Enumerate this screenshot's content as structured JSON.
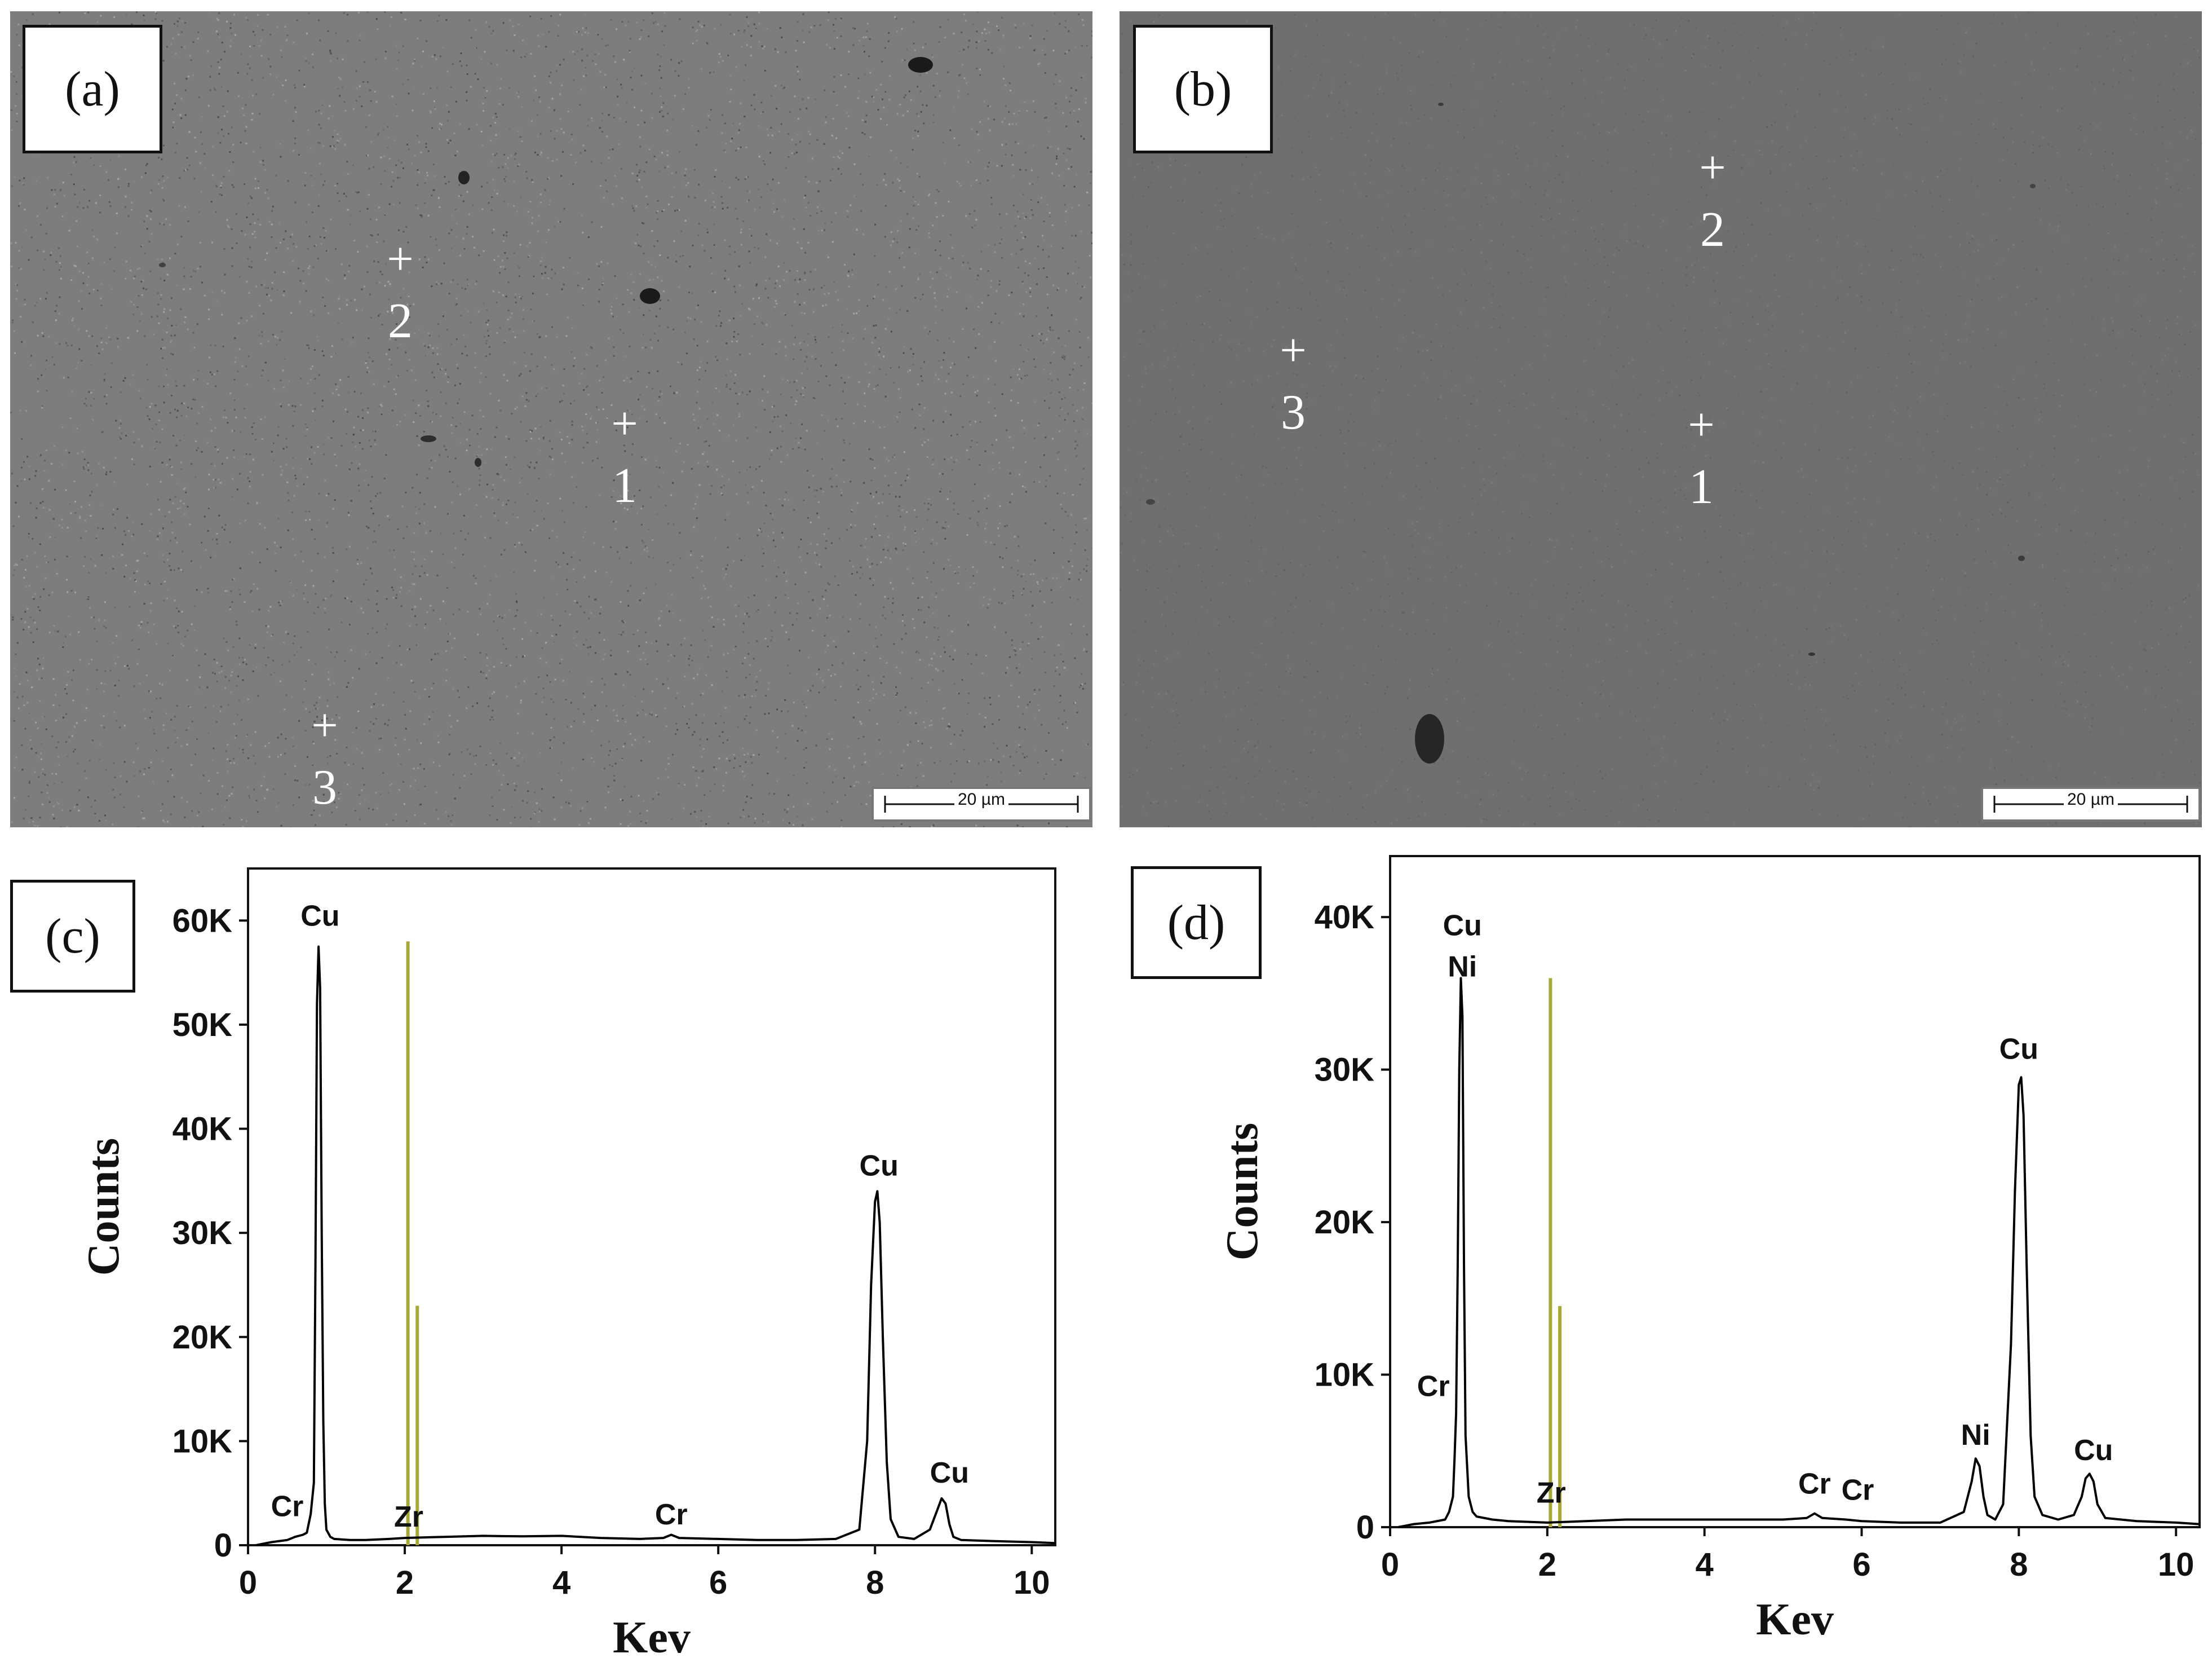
{
  "panels": {
    "a": {
      "tag": "(a)",
      "scale_label": "20 µm",
      "points": [
        {
          "label": "1"
        },
        {
          "label": "2"
        },
        {
          "label": "3"
        }
      ]
    },
    "b": {
      "tag": "(b)",
      "scale_label": "20 µm",
      "points": [
        {
          "label": "1"
        },
        {
          "label": "2"
        },
        {
          "label": "3"
        }
      ]
    },
    "c": {
      "tag": "(c)"
    },
    "d": {
      "tag": "(d)"
    }
  },
  "colors": {
    "sem_a": "#7d7d7d",
    "sem_b": "#6f6f6f",
    "spectrum_line": "#000000",
    "marker_line": "#a8a838"
  },
  "chart_data": [
    {
      "panel": "c",
      "type": "line",
      "xlabel": "Kev",
      "ylabel": "Counts",
      "xlim": [
        0,
        10.3
      ],
      "ylim": [
        0,
        65000
      ],
      "xticks": [
        0,
        2,
        4,
        6,
        8,
        10
      ],
      "yticks": [
        0,
        10000,
        20000,
        30000,
        40000,
        50000,
        60000
      ],
      "ytick_labels": [
        "0",
        "10K",
        "20K",
        "30K",
        "40K",
        "50K",
        "60K"
      ],
      "grid": false,
      "series": [
        {
          "x": [
            0.1,
            0.3,
            0.5,
            0.6,
            0.7,
            0.75,
            0.8,
            0.84,
            0.86,
            0.88,
            0.9,
            0.92,
            0.94,
            0.96,
            0.98,
            1.0,
            1.05,
            1.1,
            1.3,
            1.5,
            1.8,
            2.0,
            2.5,
            3.0,
            3.5,
            4.0,
            4.5,
            5.0,
            5.3,
            5.4,
            5.5,
            6.0,
            6.5,
            7.0,
            7.5,
            7.8,
            7.9,
            7.95,
            8.0,
            8.03,
            8.06,
            8.1,
            8.15,
            8.2,
            8.3,
            8.5,
            8.7,
            8.8,
            8.85,
            8.9,
            8.95,
            9.0,
            9.1,
            9.5,
            10.0,
            10.3
          ],
          "y": [
            0,
            300,
            500,
            800,
            1000,
            1200,
            3000,
            6000,
            27000,
            52000,
            57500,
            53500,
            30000,
            12000,
            4000,
            1500,
            800,
            600,
            500,
            500,
            600,
            700,
            800,
            900,
            850,
            900,
            700,
            600,
            700,
            1000,
            700,
            600,
            500,
            500,
            600,
            1500,
            10000,
            25000,
            33000,
            34000,
            31000,
            20000,
            8000,
            2500,
            800,
            600,
            1500,
            3500,
            4500,
            4000,
            2000,
            800,
            500,
            400,
            300,
            200
          ]
        }
      ],
      "element_lines": [
        {
          "x": 2.04,
          "y": 58000
        },
        {
          "x": 2.16,
          "y": 23000
        }
      ],
      "annotations": [
        {
          "text": "Cu",
          "x": 0.92,
          "y": 59500
        },
        {
          "text": "Cr",
          "x": 0.5,
          "y": 2800
        },
        {
          "text": "Zr",
          "x": 2.05,
          "y": 1800
        },
        {
          "text": "Cr",
          "x": 5.4,
          "y": 2000
        },
        {
          "text": "Cu",
          "x": 8.05,
          "y": 35500
        },
        {
          "text": "Cu",
          "x": 8.95,
          "y": 6000
        }
      ]
    },
    {
      "panel": "d",
      "type": "line",
      "xlabel": "Kev",
      "ylabel": "Counts",
      "xlim": [
        0,
        10.3
      ],
      "ylim": [
        0,
        44000
      ],
      "xticks": [
        0,
        2,
        4,
        6,
        8,
        10
      ],
      "yticks": [
        0,
        10000,
        20000,
        30000,
        40000
      ],
      "ytick_labels": [
        "0",
        "10K",
        "20K",
        "30K",
        "40K"
      ],
      "grid": false,
      "series": [
        {
          "x": [
            0.1,
            0.2,
            0.3,
            0.5,
            0.7,
            0.75,
            0.8,
            0.82,
            0.84,
            0.86,
            0.88,
            0.9,
            0.92,
            0.94,
            0.96,
            1.0,
            1.05,
            1.1,
            1.3,
            1.5,
            2.0,
            2.5,
            3.0,
            3.5,
            4.0,
            4.5,
            5.0,
            5.3,
            5.4,
            5.5,
            5.8,
            6.0,
            6.5,
            7.0,
            7.3,
            7.4,
            7.45,
            7.5,
            7.55,
            7.6,
            7.7,
            7.8,
            7.9,
            7.95,
            8.0,
            8.03,
            8.06,
            8.1,
            8.15,
            8.2,
            8.3,
            8.5,
            8.7,
            8.8,
            8.85,
            8.9,
            8.95,
            9.0,
            9.1,
            9.5,
            10.0,
            10.3
          ],
          "y": [
            0,
            100,
            200,
            300,
            500,
            1000,
            2000,
            4500,
            7500,
            17000,
            30000,
            36000,
            33500,
            17000,
            6000,
            2000,
            1000,
            700,
            500,
            400,
            300,
            400,
            500,
            500,
            500,
            500,
            500,
            600,
            900,
            600,
            500,
            400,
            300,
            300,
            1000,
            3000,
            4500,
            4000,
            2000,
            800,
            500,
            1500,
            12000,
            22000,
            29000,
            29500,
            27000,
            17000,
            6000,
            2000,
            800,
            500,
            800,
            2000,
            3200,
            3500,
            3000,
            1500,
            600,
            400,
            300,
            200
          ]
        }
      ],
      "element_lines": [
        {
          "x": 2.04,
          "y": 36000
        },
        {
          "x": 2.16,
          "y": 14500
        }
      ],
      "annotations": [
        {
          "text": "Cu",
          "x": 0.92,
          "y": 38800
        },
        {
          "text": "Ni",
          "x": 0.92,
          "y": 36100
        },
        {
          "text": "Cr",
          "x": 0.55,
          "y": 8600
        },
        {
          "text": "Zr",
          "x": 2.05,
          "y": 1600
        },
        {
          "text": "Cr",
          "x": 5.4,
          "y": 2200
        },
        {
          "text": "Cr",
          "x": 5.95,
          "y": 1800
        },
        {
          "text": "Ni",
          "x": 7.45,
          "y": 5400
        },
        {
          "text": "Cu",
          "x": 8.0,
          "y": 30700
        },
        {
          "text": "Cu",
          "x": 8.95,
          "y": 4400
        }
      ]
    }
  ]
}
